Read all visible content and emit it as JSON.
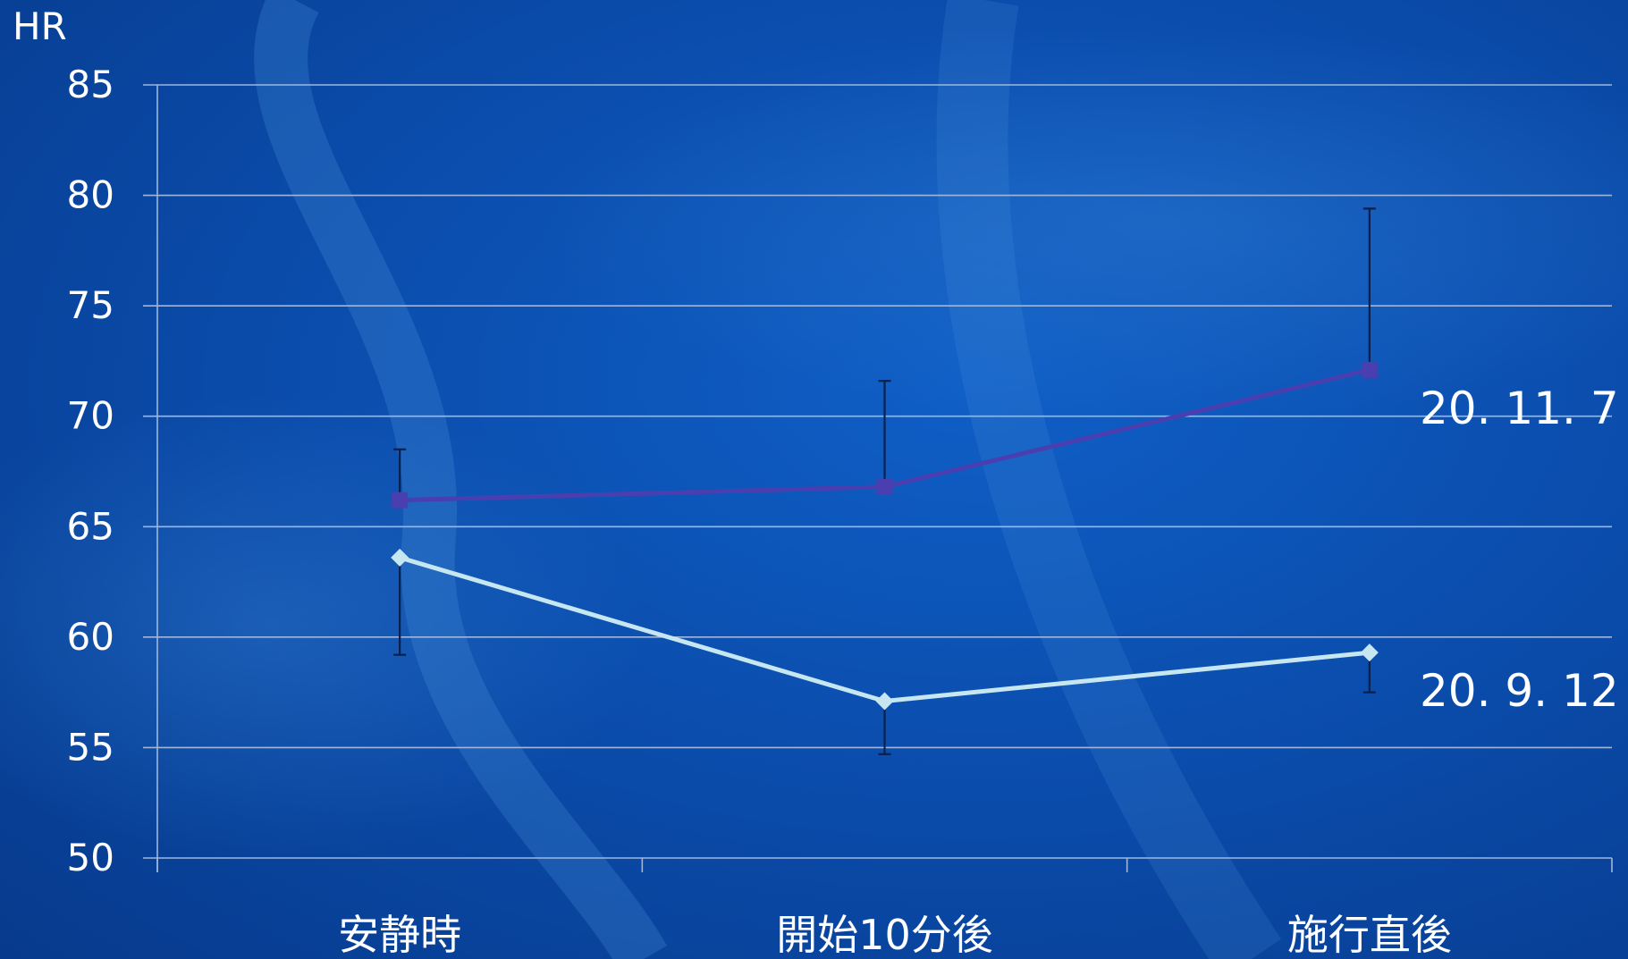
{
  "chart_data": {
    "type": "line",
    "ylabel": "HR",
    "ylim": [
      50,
      85
    ],
    "yticks": [
      50,
      55,
      60,
      65,
      70,
      75,
      80,
      85
    ],
    "grid": true,
    "categories": [
      "安静時",
      "開始10分後",
      "施行直後"
    ],
    "series": [
      {
        "name": "20. 11. 7",
        "values": [
          66.2,
          66.8,
          72.1
        ],
        "error_low": [
          66.2,
          66.8,
          72.1
        ],
        "error_high": [
          68.5,
          71.6,
          79.4
        ],
        "color": "#4a3fb0",
        "marker": "square"
      },
      {
        "name": "20. 9. 12",
        "values": [
          63.6,
          57.1,
          59.3
        ],
        "error_low": [
          59.2,
          54.7,
          57.5
        ],
        "error_high": [
          63.6,
          57.1,
          59.3
        ],
        "color": "#c6e6f2",
        "marker": "diamond"
      }
    ]
  },
  "colors": {
    "gridline": "#9fb7dc",
    "axis": "#9fb7dc",
    "errorbar": "#0a1f4a"
  }
}
